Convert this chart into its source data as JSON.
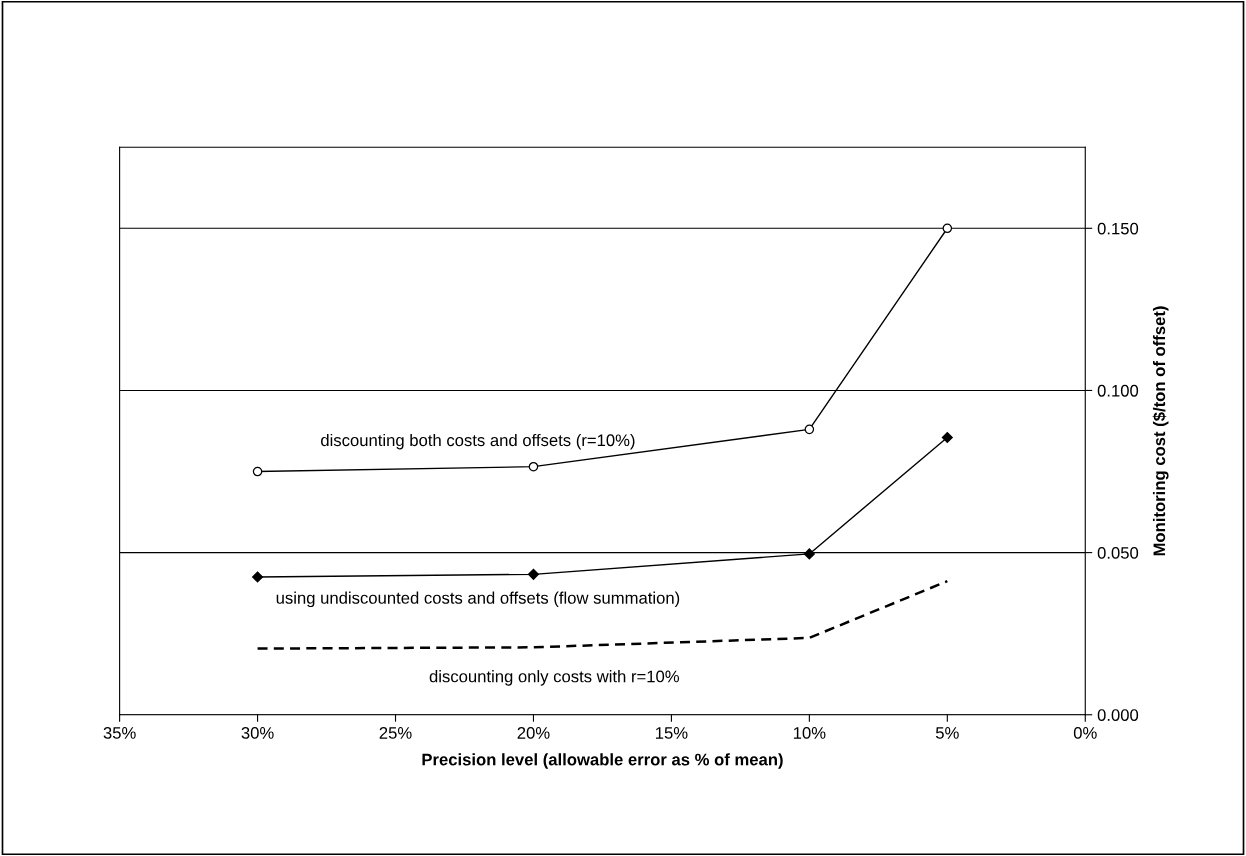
{
  "chart_data": {
    "type": "line",
    "xlabel": "Precision level (allowable error as % of mean)",
    "ylabel": "Monitoring cost ($/ton of offset)",
    "xlim": [
      35,
      0
    ],
    "xticks": [
      {
        "value": 35,
        "label": "35%"
      },
      {
        "value": 30,
        "label": "30%"
      },
      {
        "value": 25,
        "label": "25%"
      },
      {
        "value": 20,
        "label": "20%"
      },
      {
        "value": 15,
        "label": "15%"
      },
      {
        "value": 10,
        "label": "10%"
      },
      {
        "value": 5,
        "label": "5%"
      },
      {
        "value": 0,
        "label": "0%"
      }
    ],
    "ylim": [
      0,
      0.175
    ],
    "yticks": [
      {
        "value": 0,
        "label": "0.000"
      },
      {
        "value": 0.05,
        "label": "0.050"
      },
      {
        "value": 0.1,
        "label": "0.100"
      },
      {
        "value": 0.15,
        "label": "0.150"
      }
    ],
    "grid": "y",
    "legend": false,
    "x": [
      30,
      20,
      10,
      5
    ],
    "series": [
      {
        "name": "discounting both costs and offsets (r=10%)",
        "color": "#000000",
        "values": [
          0.075,
          0.0765,
          0.088,
          0.15
        ],
        "marker": "circle",
        "line_style": "solid"
      },
      {
        "name": "using undiscounted costs and offsets (flow summation)",
        "color": "#000000",
        "values": [
          0.0425,
          0.0433,
          0.0496,
          0.0855
        ],
        "marker": "diamond",
        "line_style": "solid"
      },
      {
        "name": "discounting only costs with r=10%",
        "color": "#000000",
        "values": [
          0.0204,
          0.0208,
          0.0237,
          0.0412
        ],
        "marker": "none",
        "line_style": "dashed"
      }
    ]
  }
}
